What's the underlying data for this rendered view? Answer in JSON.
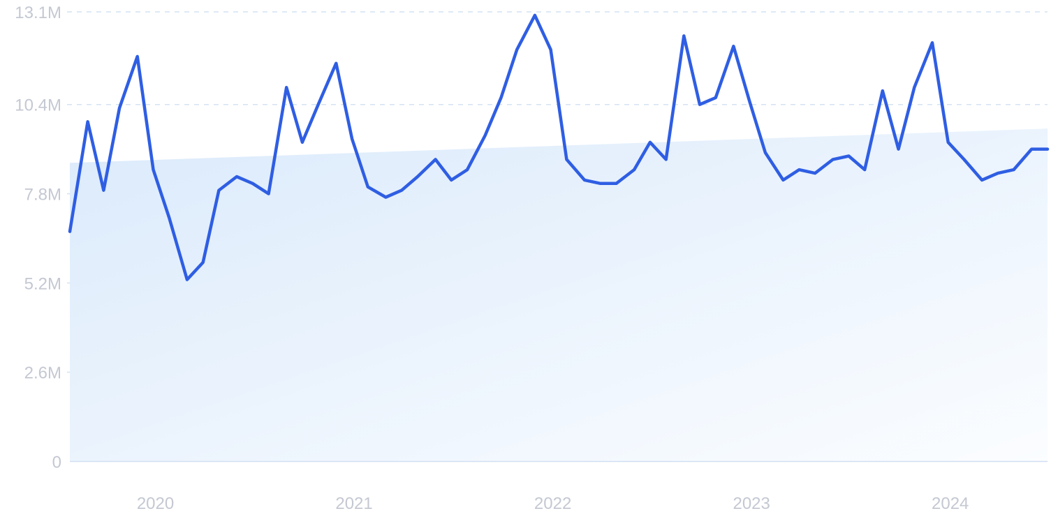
{
  "chart_data": {
    "type": "line",
    "title": "",
    "xlabel": "",
    "ylabel": "",
    "ylim": [
      0,
      13100000
    ],
    "y_ticks": [
      {
        "value": 0,
        "label": "0"
      },
      {
        "value": 2600000,
        "label": "2.6M"
      },
      {
        "value": 5200000,
        "label": "5.2M"
      },
      {
        "value": 7800000,
        "label": "7.8M"
      },
      {
        "value": 10400000,
        "label": "10.4M"
      },
      {
        "value": 13100000,
        "label": "13.1M"
      }
    ],
    "x_ticks": [
      {
        "value": 2020.0,
        "label": "2020"
      },
      {
        "value": 2021.0,
        "label": "2021"
      },
      {
        "value": 2022.0,
        "label": "2022"
      },
      {
        "value": 2023.0,
        "label": "2023"
      },
      {
        "value": 2024.0,
        "label": "2024"
      }
    ],
    "xlim": [
      2019.58,
      2024.5
    ],
    "grid": true,
    "line_color": "#2f5ee3",
    "trend_fill_color": "#dbeafc",
    "trend": {
      "start": 8700000,
      "end": 9700000
    },
    "series": [
      {
        "name": "",
        "x": [
          2019.58,
          2019.67,
          2019.75,
          2019.83,
          2019.92,
          2020.0,
          2020.08,
          2020.17,
          2020.25,
          2020.33,
          2020.42,
          2020.5,
          2020.58,
          2020.67,
          2020.75,
          2020.83,
          2020.92,
          2021.0,
          2021.08,
          2021.17,
          2021.25,
          2021.33,
          2021.42,
          2021.5,
          2021.58,
          2021.67,
          2021.75,
          2021.83,
          2021.92,
          2022.0,
          2022.08,
          2022.17,
          2022.25,
          2022.33,
          2022.42,
          2022.5,
          2022.58,
          2022.67,
          2022.75,
          2022.83,
          2022.92,
          2023.0,
          2023.08,
          2023.17,
          2023.25,
          2023.33,
          2023.42,
          2023.5,
          2023.58,
          2023.67,
          2023.75,
          2023.83,
          2023.92,
          2024.0,
          2024.08,
          2024.17,
          2024.25,
          2024.33,
          2024.42,
          2024.5
        ],
        "values": [
          6700000,
          9900000,
          7900000,
          10300000,
          11800000,
          8500000,
          7100000,
          5300000,
          5800000,
          7900000,
          8300000,
          8100000,
          7800000,
          10900000,
          9300000,
          10400000,
          11600000,
          9400000,
          8000000,
          7700000,
          7900000,
          8300000,
          8800000,
          8200000,
          8500000,
          9500000,
          10600000,
          12000000,
          13000000,
          12000000,
          8800000,
          8200000,
          8100000,
          8100000,
          8500000,
          9300000,
          8800000,
          12400000,
          10400000,
          10600000,
          12100000,
          10500000,
          9000000,
          8200000,
          8500000,
          8400000,
          8800000,
          8900000,
          8500000,
          10800000,
          9100000,
          10900000,
          12200000,
          9300000,
          8800000,
          8200000,
          8400000,
          8500000,
          9100000,
          9100000
        ]
      }
    ]
  }
}
